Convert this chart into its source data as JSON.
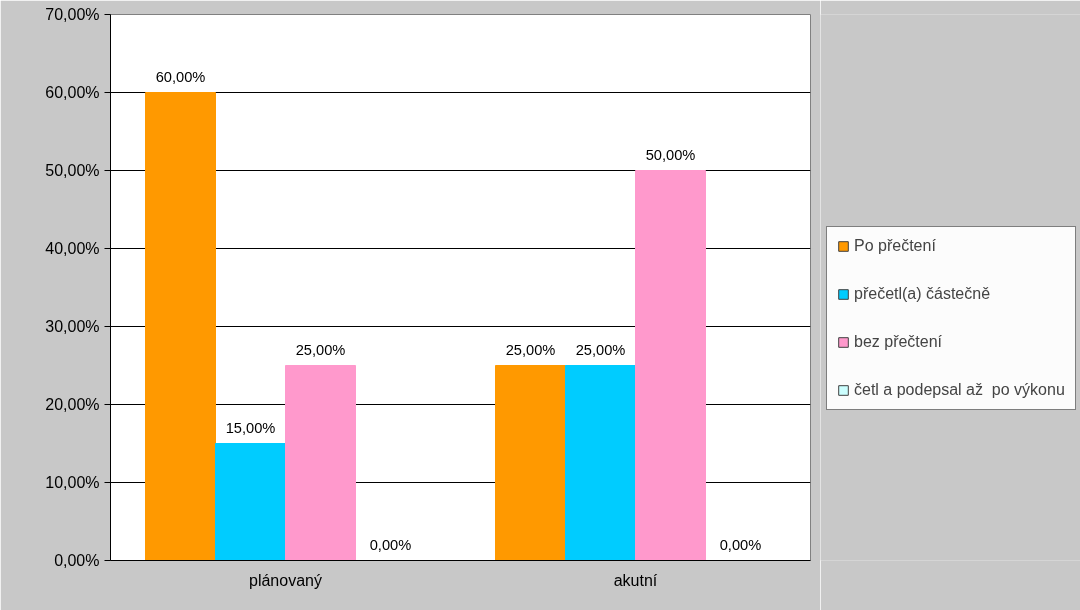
{
  "chart_data": {
    "type": "bar",
    "categories": [
      "plánovaný",
      "akutní"
    ],
    "series": [
      {
        "name": "Po přečtení",
        "color": "#ff9900",
        "values": [
          60,
          25
        ],
        "value_labels": [
          "60,00%",
          "25,00%"
        ]
      },
      {
        "name": "přečetl(a) částečně",
        "color": "#00ccff",
        "values": [
          15,
          25
        ],
        "value_labels": [
          "15,00%",
          "25,00%"
        ]
      },
      {
        "name": "bez přečtení",
        "color": "#ff99cc",
        "values": [
          25,
          50
        ],
        "value_labels": [
          "25,00%",
          "50,00%"
        ]
      },
      {
        "name": "četl a podepsal až  po výkonu",
        "color": "#ccffff",
        "values": [
          0,
          0
        ],
        "value_labels": [
          "0,00%",
          "0,00%"
        ]
      }
    ],
    "ylim": [
      0,
      70
    ],
    "yticks": [
      {
        "value": 0,
        "label": "0,00%"
      },
      {
        "value": 10,
        "label": "10,00%"
      },
      {
        "value": 20,
        "label": "20,00%"
      },
      {
        "value": 30,
        "label": "30,00%"
      },
      {
        "value": 40,
        "label": "40,00%"
      },
      {
        "value": 50,
        "label": "50,00%"
      },
      {
        "value": 60,
        "label": "60,00%"
      },
      {
        "value": 70,
        "label": "70,00%"
      }
    ],
    "grid": "y",
    "legend": "right"
  }
}
